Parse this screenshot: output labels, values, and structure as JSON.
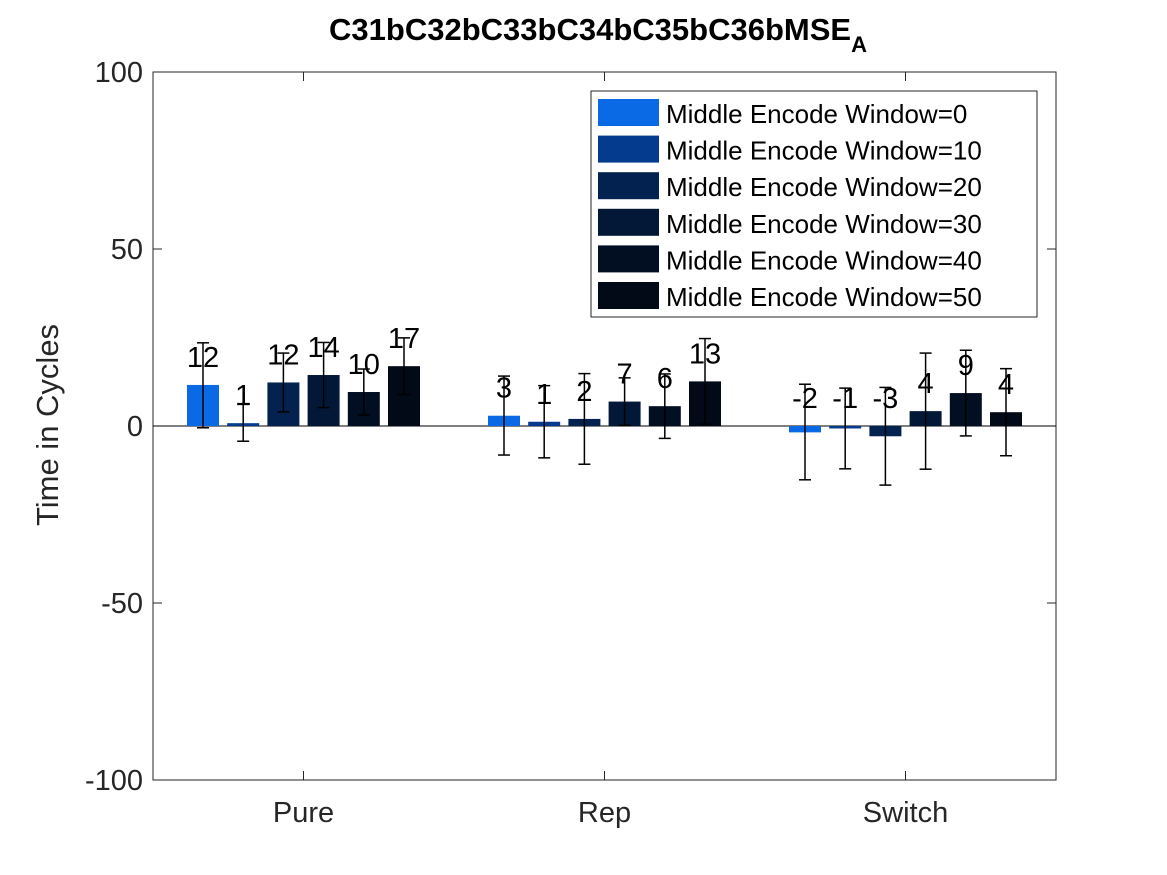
{
  "chart_data": {
    "type": "bar",
    "title": "C31bC32bC33bC34bC35bC36bMSE",
    "title_subscript": "A",
    "xlabel": "",
    "ylabel": "Time in Cycles",
    "ylim": [
      -100,
      100
    ],
    "yticks": [
      -100,
      -50,
      0,
      50,
      100
    ],
    "grid": false,
    "legend_position": "top-right",
    "categories": [
      "Pure",
      "Rep",
      "Switch"
    ],
    "series": [
      {
        "name": "Middle Encode Window=0",
        "color": "#0a6ae6",
        "values": [
          11.6,
          2.9,
          -1.8
        ],
        "error_low": [
          -0.5,
          -8.2,
          -15.2
        ],
        "error_high": [
          23.5,
          14.1,
          11.8
        ],
        "labels": [
          "12",
          "3",
          "-2"
        ]
      },
      {
        "name": "Middle Encode Window=10",
        "color": "#053b8f",
        "values": [
          0.8,
          1.2,
          -0.7
        ],
        "error_low": [
          -4.3,
          -9.0,
          -12.1
        ],
        "error_high": [
          6.1,
          11.4,
          10.7
        ],
        "labels": [
          "1",
          "1",
          "-1"
        ]
      },
      {
        "name": "Middle Encode Window=20",
        "color": "#03224f",
        "values": [
          12.3,
          2.0,
          -2.9
        ],
        "error_low": [
          4.0,
          -10.8,
          -16.7
        ],
        "error_high": [
          20.6,
          14.8,
          10.9
        ],
        "labels": [
          "12",
          "2",
          "-3"
        ]
      },
      {
        "name": "Middle Encode Window=30",
        "color": "#031736",
        "values": [
          14.4,
          6.9,
          4.2
        ],
        "error_low": [
          5.2,
          0.2,
          -12.2
        ],
        "error_high": [
          23.6,
          13.6,
          20.6
        ],
        "labels": [
          "14",
          "7",
          "4"
        ]
      },
      {
        "name": "Middle Encode Window=40",
        "color": "#020f22",
        "values": [
          9.6,
          5.6,
          9.3
        ],
        "error_low": [
          3.1,
          -3.5,
          -2.8
        ],
        "error_high": [
          16.1,
          14.7,
          21.4
        ],
        "labels": [
          "10",
          "6",
          "9"
        ]
      },
      {
        "name": "Middle Encode Window=50",
        "color": "#020a18",
        "values": [
          16.9,
          12.6,
          3.9
        ],
        "error_low": [
          8.9,
          0.5,
          -8.4
        ],
        "error_high": [
          24.9,
          24.7,
          16.2
        ],
        "labels": [
          "17",
          "13",
          "4"
        ]
      }
    ]
  }
}
